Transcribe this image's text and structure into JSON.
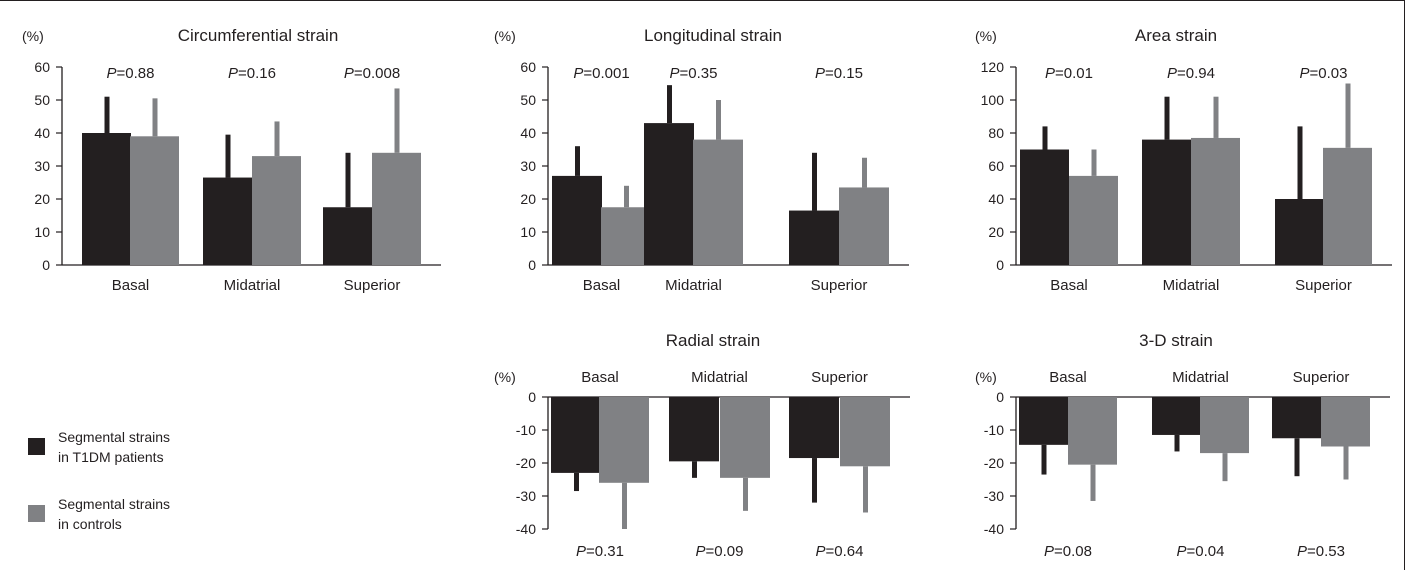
{
  "legend": {
    "patients": "Segmental strains\nin T1DM patients",
    "controls": "Segmental strains\nin controls"
  },
  "colors": {
    "patients": "#231f20",
    "controls": "#808184"
  },
  "chart_data": [
    {
      "id": "circ",
      "type": "bar",
      "title": "Circumferential strain",
      "unit": "(%)",
      "categories": [
        "Basal",
        "Midatrial",
        "Superior"
      ],
      "ylim": [
        0,
        60
      ],
      "ticks": [
        0,
        10,
        20,
        30,
        40,
        50,
        60
      ],
      "series": [
        {
          "name": "Segmental strains in T1DM patients",
          "values": [
            40,
            26.5,
            17.5
          ],
          "error_ends": [
            51,
            39.5,
            34
          ]
        },
        {
          "name": "Segmental strains in controls",
          "values": [
            39,
            33,
            34
          ],
          "error_ends": [
            50.5,
            43.5,
            53.5
          ]
        }
      ],
      "pvalues": [
        "=0.88",
        "=0.16",
        "=0.008"
      ],
      "p_position": "top"
    },
    {
      "id": "long",
      "type": "bar",
      "title": "Longitudinal strain",
      "unit": "(%)",
      "categories": [
        "Basal",
        "Midatrial",
        "Superior"
      ],
      "ylim": [
        0,
        60
      ],
      "ticks": [
        0,
        10,
        20,
        30,
        40,
        50,
        60
      ],
      "series": [
        {
          "name": "Segmental strains in T1DM patients",
          "values": [
            27,
            43,
            16.5
          ],
          "error_ends": [
            36,
            54.5,
            34
          ]
        },
        {
          "name": "Segmental strains in controls",
          "values": [
            17.5,
            38,
            23.5
          ],
          "error_ends": [
            24,
            50,
            32.5
          ]
        }
      ],
      "pvalues": [
        "=0.001",
        "=0.35",
        "=0.15"
      ],
      "p_position": "top"
    },
    {
      "id": "area",
      "type": "bar",
      "title": "Area strain",
      "unit": "(%)",
      "categories": [
        "Basal",
        "Midatrial",
        "Superior"
      ],
      "ylim": [
        0,
        120
      ],
      "ticks": [
        0,
        20,
        40,
        60,
        80,
        100,
        120
      ],
      "series": [
        {
          "name": "Segmental strains in T1DM patients",
          "values": [
            70,
            76,
            40
          ],
          "error_ends": [
            84,
            102,
            84
          ]
        },
        {
          "name": "Segmental strains in controls",
          "values": [
            54,
            77,
            71
          ],
          "error_ends": [
            70,
            102,
            110
          ]
        }
      ],
      "pvalues": [
        "=0.01",
        "=0.94",
        "=0.03"
      ],
      "p_position": "top"
    },
    {
      "id": "radial",
      "type": "bar",
      "title": "Radial strain",
      "unit": "(%)",
      "categories": [
        "Basal",
        "Midatrial",
        "Superior"
      ],
      "ylim": [
        -40,
        0
      ],
      "ticks": [
        0,
        -10,
        -20,
        -30,
        -40
      ],
      "series": [
        {
          "name": "Segmental strains in T1DM patients",
          "values": [
            -23,
            -19.5,
            -18.5
          ],
          "error_ends": [
            -28.5,
            -24.5,
            -32
          ]
        },
        {
          "name": "Segmental strains in controls",
          "values": [
            -26,
            -24.5,
            -21
          ],
          "error_ends": [
            -40,
            -34.5,
            -35
          ]
        }
      ],
      "pvalues": [
        "=0.31",
        "=0.09",
        "=0.64"
      ],
      "p_position": "bottom"
    },
    {
      "id": "threed",
      "type": "bar",
      "title": "3-D strain",
      "unit": "(%)",
      "categories": [
        "Basal",
        "Midatrial",
        "Superior"
      ],
      "ylim": [
        -40,
        0
      ],
      "ticks": [
        0,
        -10,
        -20,
        -30,
        -40
      ],
      "series": [
        {
          "name": "Segmental strains in T1DM patients",
          "values": [
            -14.5,
            -11.5,
            -12.5
          ],
          "error_ends": [
            -23.5,
            -16.5,
            -24
          ]
        },
        {
          "name": "Segmental strains in controls",
          "values": [
            -20.5,
            -17,
            -15
          ],
          "error_ends": [
            -31.5,
            -25.5,
            -25
          ]
        }
      ],
      "pvalues": [
        "=0.08",
        "=0.04",
        "=0.53"
      ],
      "p_position": "bottom"
    }
  ]
}
